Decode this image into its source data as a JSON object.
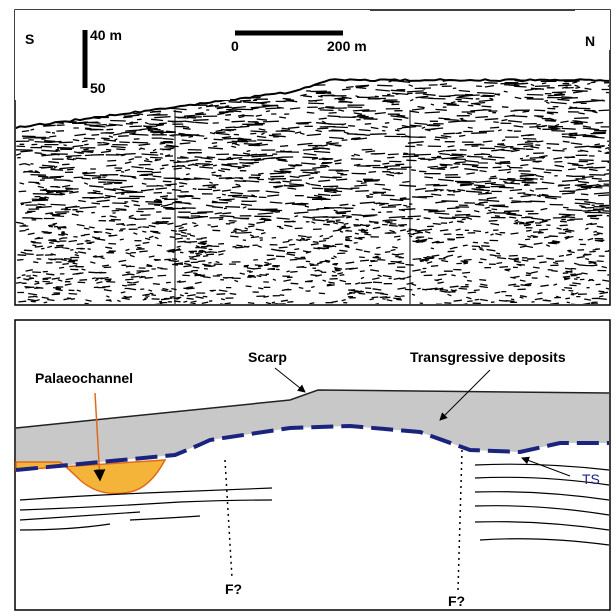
{
  "seismic_profile": {
    "south": "S",
    "north": "N",
    "vertical_scale_top": "40 m",
    "vertical_scale_bottom": "50",
    "horizontal_scale_start": "0",
    "horizontal_scale_end": "200 m"
  },
  "interpretation": {
    "scarp": "Scarp",
    "transgressive_deposits": "Transgressive deposits",
    "palaeochannel": "Palaeochannel",
    "ts": "TS",
    "faults": [
      "F?",
      "F?"
    ]
  }
}
